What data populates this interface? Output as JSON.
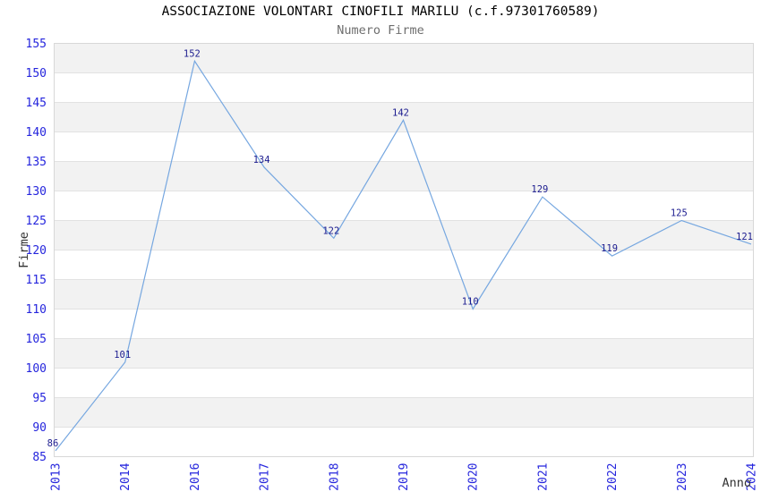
{
  "chart_data": {
    "type": "line",
    "title": "ASSOCIAZIONE VOLONTARI CINOFILI MARILU (c.f.97301760589)",
    "subtitle": "Numero Firme",
    "xlabel": "Anno",
    "ylabel": "Firme",
    "categories": [
      "2013",
      "2014",
      "2016",
      "2017",
      "2018",
      "2019",
      "2020",
      "2021",
      "2022",
      "2023",
      "2024"
    ],
    "values": [
      86,
      101,
      152,
      134,
      122,
      142,
      110,
      129,
      119,
      125,
      121
    ],
    "ylim": [
      85,
      155
    ],
    "ytick_step": 5,
    "ytick_labels": [
      "85",
      "90",
      "95",
      "100",
      "105",
      "110",
      "115",
      "120",
      "125",
      "130",
      "135",
      "140",
      "145",
      "150",
      "155"
    ],
    "grid": "horizontal",
    "legend": "none",
    "band_fill": "alternating",
    "colors": {
      "line": "#76a7e0",
      "tick_label": "#2525dd",
      "data_label": "#1c1c8f",
      "band": "#f2f2f2",
      "grid": "#e2e2e2",
      "border": "#d8d8d8",
      "title": "#000000",
      "subtitle": "#6e6e6e",
      "axis_label": "#333333"
    }
  }
}
